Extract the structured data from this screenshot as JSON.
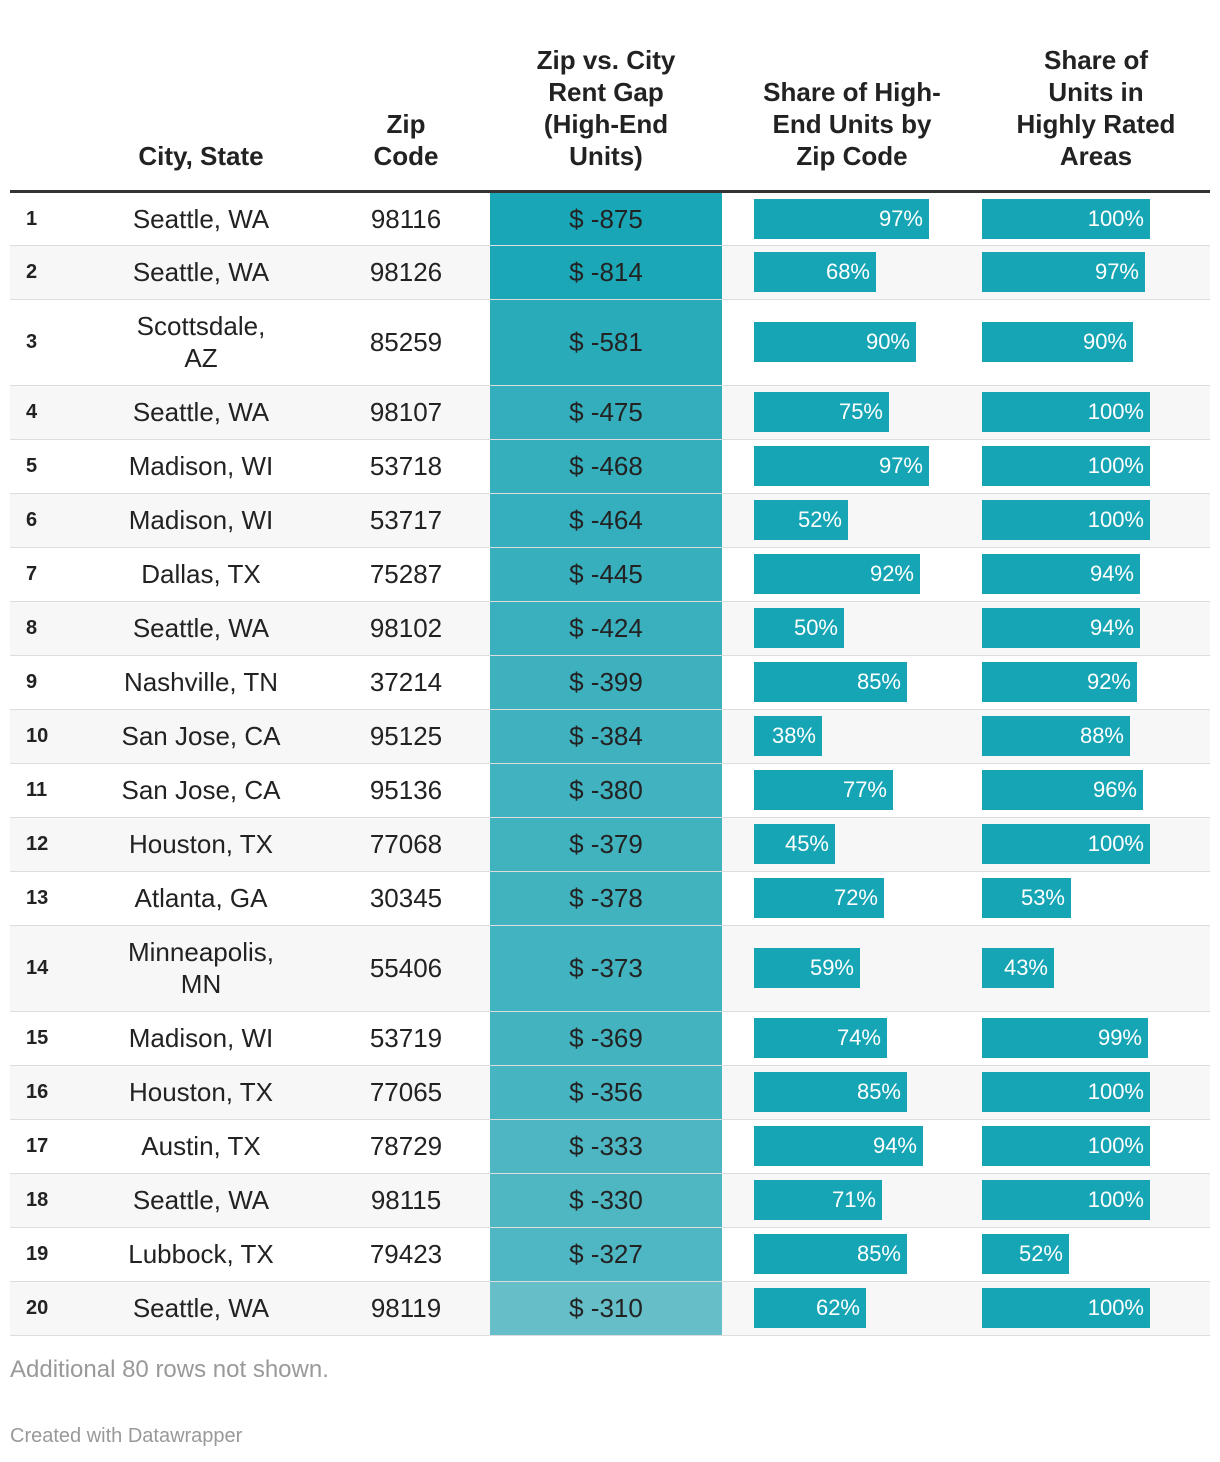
{
  "chart_data": {
    "type": "table",
    "columns": [
      "",
      "City, State",
      "Zip Code",
      "Zip vs. City Rent Gap (High-End Units)",
      "Share of High-End Units by Zip Code",
      "Share of Units in Highly Rated Areas"
    ],
    "headers": {
      "rank": "",
      "city": "City, State",
      "zip": "Zip\nCode",
      "gap": "Zip vs. City\nRent Gap\n(High-End\nUnits)",
      "share_high_end": "Share of High-\nEnd Units by\nZip Code",
      "share_rated": "Share of\nUnits in\nHighly Rated\nAreas"
    },
    "rows": [
      {
        "rank": "1",
        "city": "Seattle, WA",
        "zip": "98116",
        "gap": -875,
        "gap_label": "$ -875",
        "share_high_end": 97,
        "share_high_end_label": "97%",
        "share_rated": 100,
        "share_rated_label": "100%"
      },
      {
        "rank": "2",
        "city": "Seattle, WA",
        "zip": "98126",
        "gap": -814,
        "gap_label": "$ -814",
        "share_high_end": 68,
        "share_high_end_label": "68%",
        "share_rated": 97,
        "share_rated_label": "97%"
      },
      {
        "rank": "3",
        "city": "Scottsdale,\nAZ",
        "zip": "85259",
        "gap": -581,
        "gap_label": "$ -581",
        "share_high_end": 90,
        "share_high_end_label": "90%",
        "share_rated": 90,
        "share_rated_label": "90%"
      },
      {
        "rank": "4",
        "city": "Seattle, WA",
        "zip": "98107",
        "gap": -475,
        "gap_label": "$ -475",
        "share_high_end": 75,
        "share_high_end_label": "75%",
        "share_rated": 100,
        "share_rated_label": "100%"
      },
      {
        "rank": "5",
        "city": "Madison, WI",
        "zip": "53718",
        "gap": -468,
        "gap_label": "$ -468",
        "share_high_end": 97,
        "share_high_end_label": "97%",
        "share_rated": 100,
        "share_rated_label": "100%"
      },
      {
        "rank": "6",
        "city": "Madison, WI",
        "zip": "53717",
        "gap": -464,
        "gap_label": "$ -464",
        "share_high_end": 52,
        "share_high_end_label": "52%",
        "share_rated": 100,
        "share_rated_label": "100%"
      },
      {
        "rank": "7",
        "city": "Dallas, TX",
        "zip": "75287",
        "gap": -445,
        "gap_label": "$ -445",
        "share_high_end": 92,
        "share_high_end_label": "92%",
        "share_rated": 94,
        "share_rated_label": "94%"
      },
      {
        "rank": "8",
        "city": "Seattle, WA",
        "zip": "98102",
        "gap": -424,
        "gap_label": "$ -424",
        "share_high_end": 50,
        "share_high_end_label": "50%",
        "share_rated": 94,
        "share_rated_label": "94%"
      },
      {
        "rank": "9",
        "city": "Nashville, TN",
        "zip": "37214",
        "gap": -399,
        "gap_label": "$ -399",
        "share_high_end": 85,
        "share_high_end_label": "85%",
        "share_rated": 92,
        "share_rated_label": "92%"
      },
      {
        "rank": "10",
        "city": "San Jose, CA",
        "zip": "95125",
        "gap": -384,
        "gap_label": "$ -384",
        "share_high_end": 38,
        "share_high_end_label": "38%",
        "share_rated": 88,
        "share_rated_label": "88%"
      },
      {
        "rank": "11",
        "city": "San Jose, CA",
        "zip": "95136",
        "gap": -380,
        "gap_label": "$ -380",
        "share_high_end": 77,
        "share_high_end_label": "77%",
        "share_rated": 96,
        "share_rated_label": "96%"
      },
      {
        "rank": "12",
        "city": "Houston, TX",
        "zip": "77068",
        "gap": -379,
        "gap_label": "$ -379",
        "share_high_end": 45,
        "share_high_end_label": "45%",
        "share_rated": 100,
        "share_rated_label": "100%"
      },
      {
        "rank": "13",
        "city": "Atlanta, GA",
        "zip": "30345",
        "gap": -378,
        "gap_label": "$ -378",
        "share_high_end": 72,
        "share_high_end_label": "72%",
        "share_rated": 53,
        "share_rated_label": "53%"
      },
      {
        "rank": "14",
        "city": "Minneapolis,\nMN",
        "zip": "55406",
        "gap": -373,
        "gap_label": "$ -373",
        "share_high_end": 59,
        "share_high_end_label": "59%",
        "share_rated": 43,
        "share_rated_label": "43%"
      },
      {
        "rank": "15",
        "city": "Madison, WI",
        "zip": "53719",
        "gap": -369,
        "gap_label": "$ -369",
        "share_high_end": 74,
        "share_high_end_label": "74%",
        "share_rated": 99,
        "share_rated_label": "99%"
      },
      {
        "rank": "16",
        "city": "Houston, TX",
        "zip": "77065",
        "gap": -356,
        "gap_label": "$ -356",
        "share_high_end": 85,
        "share_high_end_label": "85%",
        "share_rated": 100,
        "share_rated_label": "100%"
      },
      {
        "rank": "17",
        "city": "Austin, TX",
        "zip": "78729",
        "gap": -333,
        "gap_label": "$ -333",
        "share_high_end": 94,
        "share_high_end_label": "94%",
        "share_rated": 100,
        "share_rated_label": "100%"
      },
      {
        "rank": "18",
        "city": "Seattle, WA",
        "zip": "98115",
        "gap": -330,
        "gap_label": "$ -330",
        "share_high_end": 71,
        "share_high_end_label": "71%",
        "share_rated": 100,
        "share_rated_label": "100%"
      },
      {
        "rank": "19",
        "city": "Lubbock, TX",
        "zip": "79423",
        "gap": -327,
        "gap_label": "$ -327",
        "share_high_end": 85,
        "share_high_end_label": "85%",
        "share_rated": 52,
        "share_rated_label": "52%"
      },
      {
        "rank": "20",
        "city": "Seattle, WA",
        "zip": "98119",
        "gap": -310,
        "gap_label": "$ -310",
        "share_high_end": 62,
        "share_high_end_label": "62%",
        "share_rated": 100,
        "share_rated_label": "100%"
      }
    ],
    "gap_color_scale": {
      "strong": "#19a6b6",
      "light": "#66bec8"
    },
    "bar_color": "#16a5b5",
    "footnote": "Additional 80 rows not shown.",
    "credit": "Created with Datawrapper"
  }
}
